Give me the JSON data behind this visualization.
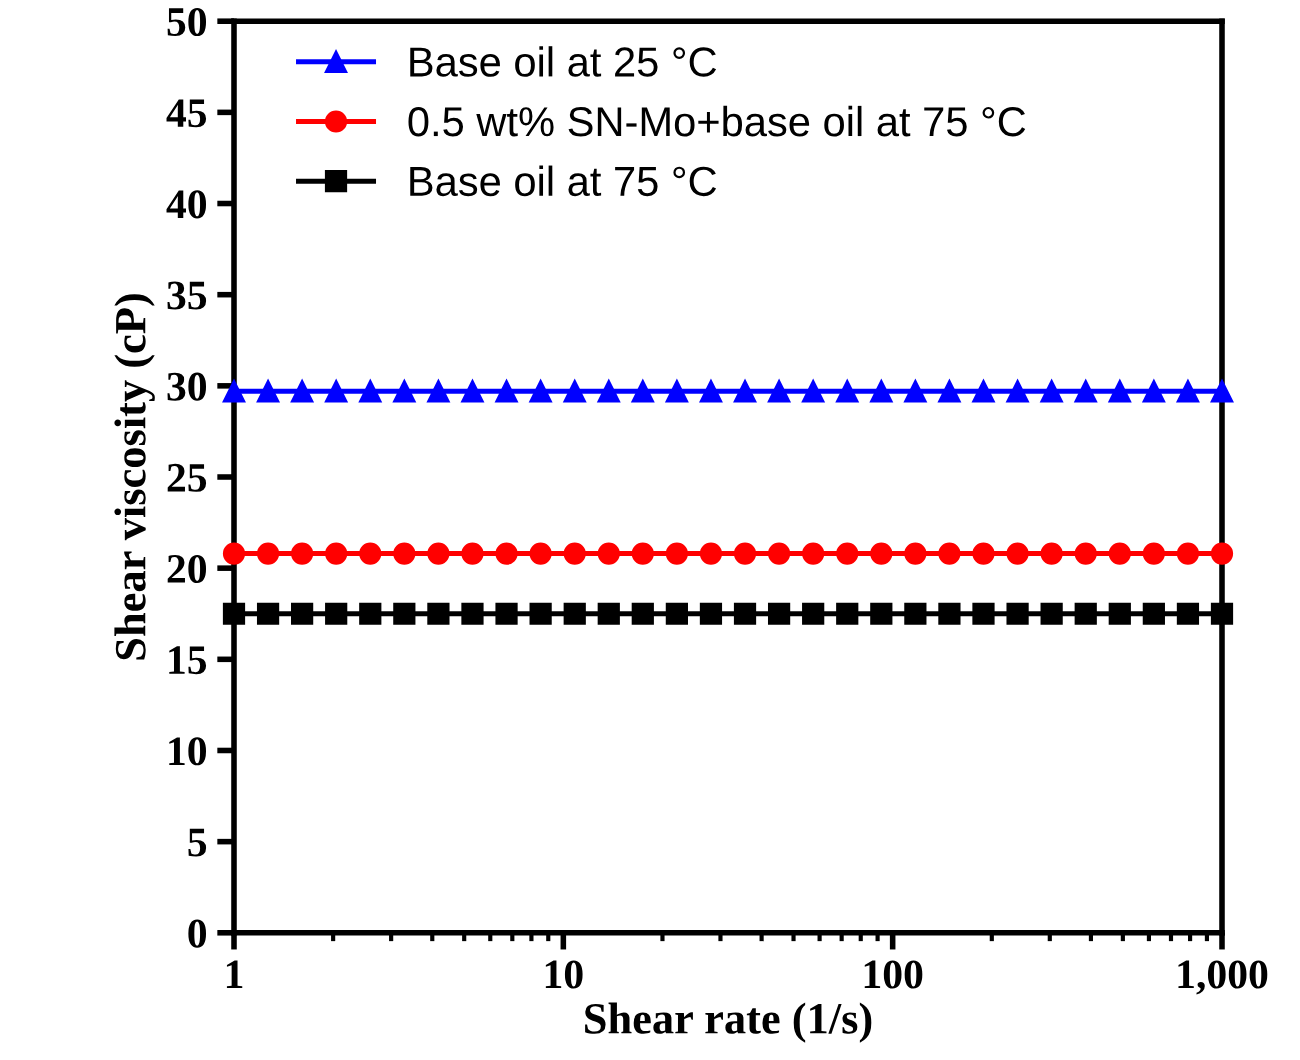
{
  "chart_data": {
    "type": "line",
    "xlabel": "Shear rate (1/s)",
    "ylabel": "Shear viscosity (cP)",
    "log": "x",
    "x": [
      1,
      1.269,
      1.61,
      2.043,
      2.593,
      3.29,
      4.175,
      5.298,
      6.723,
      8.532,
      10.83,
      13.74,
      17.43,
      22.12,
      28.07,
      35.62,
      45.2,
      57.36,
      72.79,
      92.37,
      117.2,
      148.7,
      188.7,
      239.5,
      303.9,
      385.7,
      489.4,
      621,
      788.1,
      1000
    ],
    "series": [
      {
        "name": "Base oil at 25 °C",
        "color": "#0000ff",
        "marker": "triangle",
        "values": [
          29.7,
          29.7,
          29.7,
          29.7,
          29.7,
          29.7,
          29.7,
          29.7,
          29.7,
          29.7,
          29.7,
          29.7,
          29.7,
          29.7,
          29.7,
          29.7,
          29.7,
          29.7,
          29.7,
          29.7,
          29.7,
          29.7,
          29.7,
          29.7,
          29.7,
          29.7,
          29.7,
          29.7,
          29.7,
          29.7
        ]
      },
      {
        "name": "0.5 wt% SN-Mo+base oil at 75 °C",
        "color": "#ff0000",
        "marker": "circle",
        "values": [
          20.8,
          20.8,
          20.8,
          20.8,
          20.8,
          20.8,
          20.8,
          20.8,
          20.8,
          20.8,
          20.8,
          20.8,
          20.8,
          20.8,
          20.8,
          20.8,
          20.8,
          20.8,
          20.8,
          20.8,
          20.8,
          20.8,
          20.8,
          20.8,
          20.8,
          20.8,
          20.8,
          20.8,
          20.8,
          20.8
        ]
      },
      {
        "name": "Base oil at 75 °C",
        "color": "#000000",
        "marker": "square",
        "values": [
          17.5,
          17.5,
          17.5,
          17.5,
          17.5,
          17.5,
          17.5,
          17.5,
          17.5,
          17.5,
          17.5,
          17.5,
          17.5,
          17.5,
          17.5,
          17.5,
          17.5,
          17.5,
          17.5,
          17.5,
          17.5,
          17.5,
          17.5,
          17.5,
          17.5,
          17.5,
          17.5,
          17.5,
          17.5,
          17.5
        ]
      }
    ],
    "xlim": [
      1,
      1000
    ],
    "xticks": [
      1,
      10,
      100,
      {
        "value": 1000,
        "label": "1,000"
      }
    ],
    "ylim": [
      0,
      50
    ],
    "yticks": [
      0,
      5,
      10,
      15,
      20,
      25,
      30,
      35,
      40,
      45,
      50
    ],
    "grid": false,
    "legend": "top left",
    "line_style": "solid"
  }
}
